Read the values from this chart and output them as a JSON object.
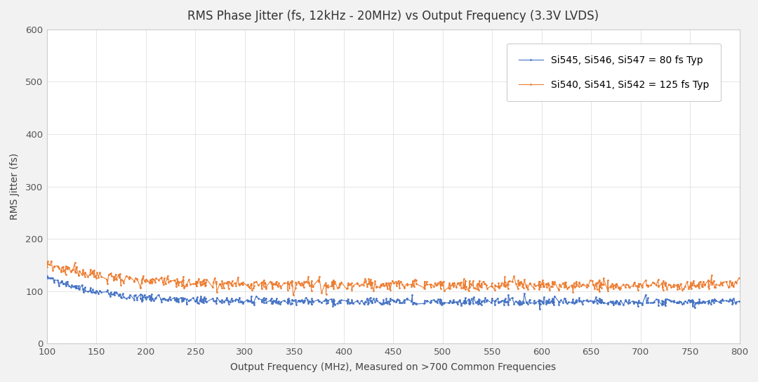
{
  "title": "RMS Phase Jitter (fs, 12kHz - 20MHz) vs Output Frequency (3.3V LVDS)",
  "xlabel": "Output Frequency (MHz), Measured on >700 Common Frequencies",
  "ylabel": "RMS Jitter (fs)",
  "xlim": [
    100,
    800
  ],
  "ylim": [
    0,
    600
  ],
  "yticks": [
    0,
    100,
    200,
    300,
    400,
    500,
    600
  ],
  "xticks": [
    100,
    150,
    200,
    250,
    300,
    350,
    400,
    450,
    500,
    550,
    600,
    650,
    700,
    750,
    800
  ],
  "legend1_label": "Si545, Si546, Si547 = 80 fs Typ",
  "legend2_label": "Si540, Si541, Si542 = 125 fs Typ",
  "color_blue": "#4472C4",
  "color_orange": "#ED7D31",
  "background_color": "#F2F2F2",
  "plot_bg_color": "#FFFFFF",
  "grid_color": "#FFFFFF",
  "title_fontsize": 12,
  "axis_label_fontsize": 10,
  "tick_fontsize": 9.5,
  "legend_fontsize": 10
}
